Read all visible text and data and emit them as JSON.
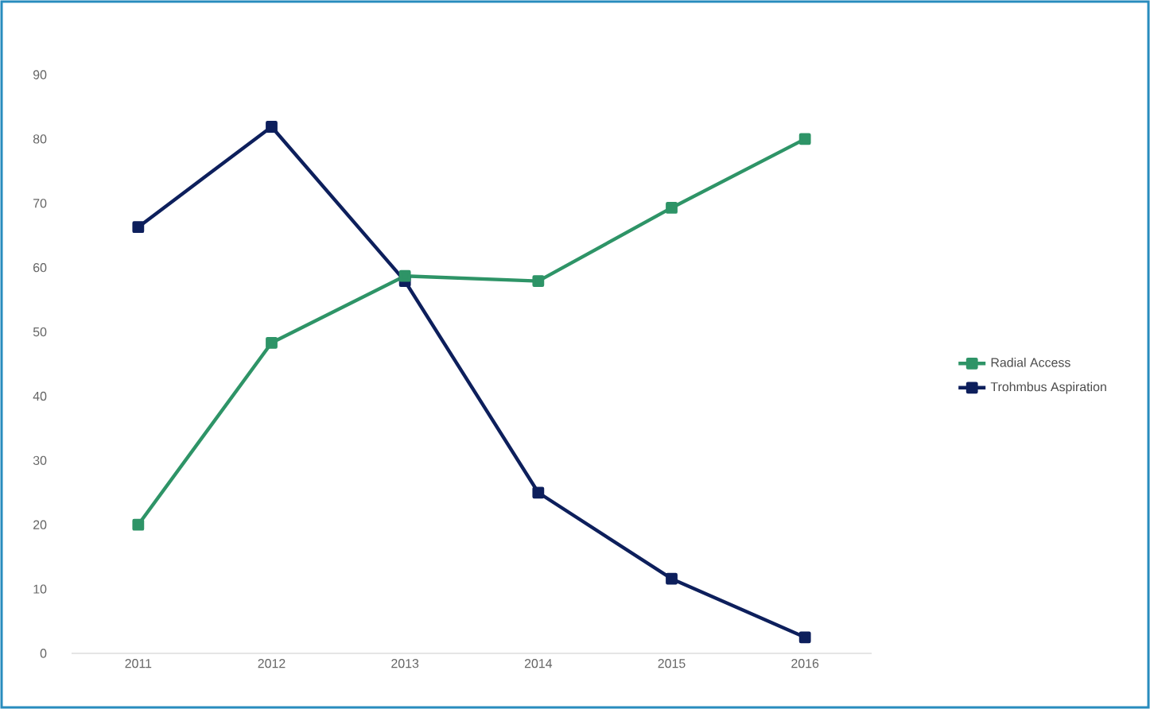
{
  "chart_data": {
    "type": "line",
    "categories": [
      "2011",
      "2012",
      "2013",
      "2014",
      "2015",
      "2016"
    ],
    "series": [
      {
        "name": "Radial Access",
        "color": "#2e9467",
        "values": [
          20,
          48.3,
          58.7,
          57.9,
          69.3,
          80
        ]
      },
      {
        "name": "Trohmbus Aspiration",
        "color": "#0d1f5c",
        "values": [
          66.3,
          81.9,
          57.9,
          25,
          11.6,
          2.5
        ]
      }
    ],
    "ylim": [
      0,
      90
    ],
    "yticks": [
      0,
      10,
      20,
      30,
      40,
      50,
      60,
      70,
      80,
      90
    ],
    "grid": false,
    "legend": "right",
    "marker": "square",
    "line_style": "solid"
  }
}
